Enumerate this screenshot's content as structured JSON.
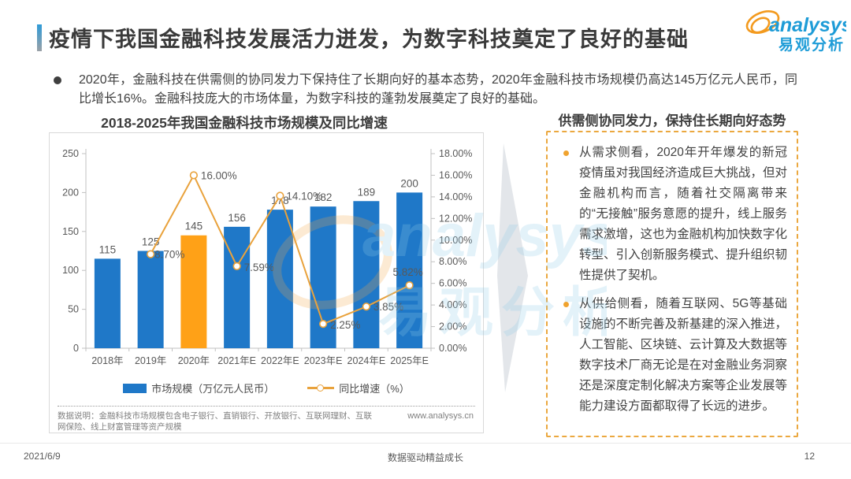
{
  "header": {
    "title": "疫情下我国金融科技发展活力迸发，为数字科技奠定了良好的基础",
    "logo_brand": "analysys",
    "logo_cn": "易观分析"
  },
  "intro": {
    "text": "2020年，金融科技在供需侧的协同发力下保持住了长期向好的基本态势，2020年金融科技市场规模仍高达145万亿元人民币，同比增长16%。金融科技庞大的市场体量，为数字科技的蓬勃发展奠定了良好的基础。"
  },
  "chart_data": {
    "type": "combo",
    "title": "2018-2025年我国金融科技市场规模及同比增速",
    "categories": [
      "2018年",
      "2019年",
      "2020年",
      "2021年E",
      "2022年E",
      "2023年E",
      "2024年E",
      "2025年E"
    ],
    "series": [
      {
        "name": "市场规模（万亿元人民币）",
        "type": "bar",
        "axis": "left",
        "color": "#1f78c8",
        "highlight_index": 2,
        "highlight_color": "#ffa117",
        "values": [
          115,
          125,
          145,
          156,
          178,
          182,
          189,
          200
        ],
        "labels": [
          "115",
          "125",
          "145",
          "156",
          "178",
          "182",
          "189",
          "200"
        ]
      },
      {
        "name": "同比增速（%）",
        "type": "line",
        "axis": "right",
        "color": "#e9a23c",
        "values": [
          null,
          8.7,
          16.0,
          7.59,
          14.1,
          2.25,
          3.85,
          5.82
        ],
        "labels": [
          "",
          "8.70%",
          "16.00%",
          "7.59%",
          "14.10%",
          "2.25%",
          "3.85%",
          "5.82%"
        ]
      }
    ],
    "left_axis": {
      "min": 0,
      "max": 250,
      "step": 50,
      "ticks": [
        "0",
        "50",
        "100",
        "150",
        "200",
        "250"
      ]
    },
    "right_axis": {
      "min": 0,
      "max": 18,
      "step": 2,
      "ticks": [
        "0.00%",
        "2.00%",
        "4.00%",
        "6.00%",
        "8.00%",
        "10.00%",
        "12.00%",
        "14.00%",
        "16.00%",
        "18.00%"
      ]
    },
    "legend_position": "bottom",
    "grid": false,
    "source_note": "数据说明：金融科技市场规模包含电子银行、直销银行、开放银行、互联网理财、互联网保险、线上财富管理等资产规模",
    "website": "www.analysys.cn"
  },
  "right_panel": {
    "heading": "供需侧协同发力，保持住长期向好态势",
    "bullets": [
      "从需求侧看，2020年开年爆发的新冠疫情虽对我国经济造成巨大挑战，但对金融机构而言，随着社交隔离带来的“无接触”服务意愿的提升，线上服务需求激增，这也为金融机构加快数字化转型、引入创新服务模式、提升组织韧性提供了契机。",
      "从供给侧看，随着互联网、5G等基础设施的不断完善及新基建的深入推进，人工智能、区块链、云计算及大数据等数字技术厂商无论是在对金融业务洞察还是深度定制化解决方案等企业发展等能力建设方面都取得了长远的进步。"
    ]
  },
  "watermark": {
    "brand": "analysys",
    "cn": "易观分析"
  },
  "footer": {
    "date": "2021/6/9",
    "center": "数据驱动精益成长",
    "page": "12"
  },
  "colors": {
    "bar_blue": "#1f78c8",
    "bar_orange": "#ffa117",
    "line_orange": "#e9a23c",
    "panel_border": "#eba83f",
    "logo_blue": "#1e9cd7",
    "logo_orange": "#f39a1e",
    "axis_gray": "#bfbfbf",
    "text_gray": "#595959"
  }
}
